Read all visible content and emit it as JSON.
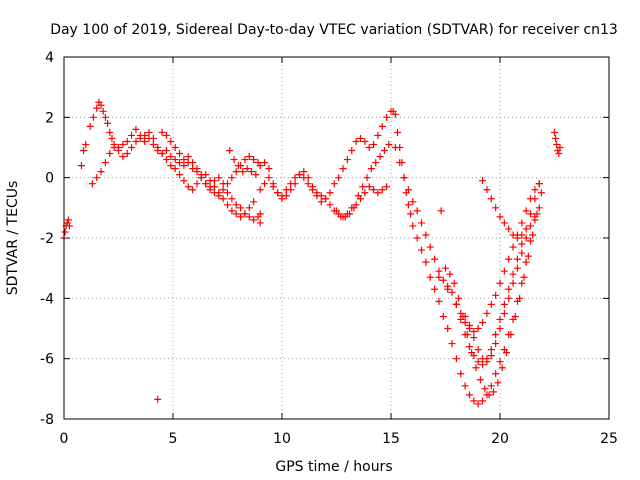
{
  "chart_data": {
    "type": "scatter",
    "title": "Day 100 of 2019, Sidereal Day-to-day VTEC variation (SDTVAR) for receiver cn13",
    "xlabel": "GPS time / hours",
    "ylabel": "SDTVAR / TECUs",
    "xlim": [
      0,
      25
    ],
    "ylim": [
      -8,
      4
    ],
    "xticks": [
      0,
      5,
      10,
      15,
      20,
      25
    ],
    "yticks": [
      -8,
      -6,
      -4,
      -2,
      0,
      2,
      4
    ],
    "grid": true,
    "marker": "+",
    "color": "#ff0000",
    "series": [
      {
        "x": [
          0.0,
          0.05,
          0.1,
          0.15,
          0.2,
          0.25,
          0.8,
          0.9,
          1.0,
          1.2,
          1.35,
          1.5,
          1.6,
          1.7,
          1.8,
          1.9,
          2.0,
          2.1,
          2.2,
          2.3,
          2.5,
          2.7,
          2.9,
          3.1,
          3.3,
          3.5,
          3.7,
          3.9,
          4.1,
          4.3,
          4.5,
          4.7,
          4.9,
          5.1,
          5.3,
          5.5,
          5.7,
          5.9,
          6.1,
          6.3,
          6.5,
          6.7,
          6.9,
          7.1,
          7.3,
          7.5,
          7.7,
          7.9,
          8.1,
          8.3,
          8.5,
          8.7,
          8.9,
          9.0,
          1.3,
          1.5,
          1.7,
          1.9,
          2.1,
          2.3,
          2.5,
          2.7,
          2.9,
          3.1,
          3.3,
          3.5,
          3.7,
          3.9,
          4.1,
          4.3,
          4.5,
          4.7,
          4.9,
          5.1,
          5.3,
          5.5,
          5.7,
          5.9,
          6.1,
          6.3,
          6.5,
          6.7,
          6.9,
          7.1,
          7.3,
          7.5,
          7.7,
          7.9,
          8.1,
          8.3,
          8.5,
          8.7,
          4.5,
          4.7,
          4.9,
          5.1,
          5.3,
          5.5,
          5.7,
          5.9,
          6.1,
          6.3,
          6.5,
          6.7,
          6.9,
          7.1,
          7.3,
          7.5,
          7.7,
          7.9,
          8.1,
          8.3,
          8.5,
          8.7,
          8.9,
          7.6,
          7.8,
          8.0,
          8.2,
          8.4,
          8.6,
          8.8,
          9.0,
          9.2,
          9.4,
          9.6,
          9.8,
          10.0,
          10.2,
          10.4,
          10.6,
          10.8,
          11.0,
          11.2,
          11.4,
          11.6,
          11.8,
          12.0,
          12.2,
          12.4,
          12.6,
          12.8,
          13.0,
          13.2,
          13.4,
          13.6,
          13.8,
          14.0,
          14.2,
          14.4,
          14.6,
          14.8,
          9.0,
          9.2,
          9.4,
          9.6,
          9.8,
          10.0,
          10.2,
          10.4,
          10.6,
          10.8,
          11.0,
          11.2,
          11.4,
          11.6,
          11.8,
          12.0,
          12.2,
          12.4,
          12.6,
          12.8,
          13.0,
          13.2,
          13.4,
          13.6,
          13.8,
          14.0,
          14.2,
          14.4,
          14.6,
          14.8,
          12.5,
          12.7,
          12.9,
          13.1,
          13.3,
          13.5,
          13.7,
          13.9,
          14.1,
          14.3,
          14.5,
          14.7,
          14.9,
          4.3,
          9.0,
          15.0,
          15.1,
          15.2,
          15.3,
          15.4,
          15.5,
          15.6,
          15.7,
          15.8,
          15.9,
          16.0,
          16.2,
          16.4,
          16.6,
          16.8,
          17.0,
          17.2,
          17.4,
          17.6,
          17.8,
          18.0,
          18.2,
          18.4,
          18.6,
          18.8,
          19.0,
          19.2,
          19.4,
          19.6,
          19.8,
          20.0,
          20.2,
          20.4,
          20.6,
          20.8,
          21.0,
          21.2,
          21.4,
          21.6,
          15.2,
          15.4,
          15.6,
          15.8,
          16.0,
          16.2,
          16.4,
          16.6,
          16.8,
          17.0,
          17.2,
          17.4,
          17.6,
          17.8,
          18.0,
          18.2,
          18.4,
          18.6,
          18.8,
          19.0,
          19.2,
          19.4,
          19.6,
          19.8,
          20.0,
          20.2,
          20.4,
          20.6,
          20.8,
          21.0,
          21.2,
          21.4,
          21.6,
          21.8,
          17.5,
          17.7,
          17.9,
          18.1,
          18.3,
          18.5,
          18.7,
          18.9,
          19.1,
          19.3,
          19.5,
          19.7,
          19.9,
          20.1,
          20.3,
          20.5,
          20.7,
          20.9,
          21.1,
          21.3,
          21.5,
          21.7,
          21.9,
          17.2,
          17.6,
          18.0,
          18.4,
          18.6,
          18.8,
          19.0,
          19.2,
          19.4,
          19.6,
          19.8,
          20.0,
          20.2,
          20.4,
          20.6,
          20.8,
          21.0,
          21.2,
          21.4,
          21.6,
          21.8,
          18.0,
          18.2,
          18.4,
          18.6,
          18.8,
          19.0,
          19.2,
          19.4,
          19.6,
          19.8,
          20.0,
          20.2,
          20.4,
          20.6,
          20.8,
          21.0,
          21.2,
          21.4,
          21.6,
          21.8,
          19.2,
          19.4,
          19.6,
          19.8,
          20.0,
          20.2,
          20.4,
          20.6,
          20.8,
          21.0,
          17.3,
          22.5,
          22.55,
          22.6,
          22.65,
          22.7,
          22.75
        ],
        "y": [
          -2.0,
          -1.8,
          -1.6,
          -1.5,
          -1.4,
          -1.6,
          0.4,
          0.9,
          1.1,
          1.7,
          2.0,
          2.3,
          2.5,
          2.4,
          2.2,
          2.0,
          1.8,
          1.5,
          1.3,
          1.1,
          1.0,
          1.1,
          1.2,
          1.4,
          1.6,
          1.4,
          1.2,
          1.3,
          1.1,
          0.9,
          0.8,
          0.9,
          0.7,
          0.6,
          0.5,
          0.4,
          0.5,
          0.3,
          0.2,
          0.0,
          -0.2,
          -0.3,
          -0.1,
          0.0,
          -0.2,
          -0.5,
          -0.7,
          -0.9,
          -1.0,
          -1.2,
          -1.3,
          -1.4,
          -1.3,
          -1.2,
          -0.2,
          0.0,
          0.2,
          0.5,
          0.8,
          1.0,
          0.9,
          0.7,
          0.8,
          1.0,
          1.2,
          1.3,
          1.4,
          1.5,
          1.3,
          1.0,
          0.8,
          0.6,
          0.4,
          0.3,
          0.1,
          -0.1,
          -0.3,
          -0.4,
          -0.2,
          0.0,
          0.1,
          -0.1,
          -0.3,
          -0.5,
          -0.7,
          -0.9,
          -1.1,
          -1.2,
          -1.3,
          -1.2,
          -1.0,
          -0.8,
          1.5,
          1.4,
          1.2,
          1.0,
          0.8,
          0.6,
          0.7,
          0.5,
          0.3,
          0.1,
          -0.2,
          -0.4,
          -0.5,
          -0.6,
          -0.4,
          -0.2,
          0.0,
          0.2,
          0.4,
          0.6,
          0.7,
          0.6,
          0.5,
          0.9,
          0.6,
          0.4,
          0.2,
          0.3,
          0.2,
          0.1,
          0.4,
          0.5,
          0.3,
          -0.2,
          -0.5,
          -0.7,
          -0.6,
          -0.4,
          -0.2,
          0.1,
          0.2,
          0.0,
          -0.3,
          -0.6,
          -0.8,
          -0.7,
          -0.5,
          -0.2,
          0.0,
          0.3,
          0.6,
          0.9,
          1.2,
          1.3,
          1.2,
          1.0,
          1.1,
          1.4,
          1.7,
          2.0,
          -0.4,
          -0.2,
          0.0,
          -0.3,
          -0.5,
          -0.6,
          -0.4,
          -0.2,
          0.0,
          0.1,
          0.0,
          -0.2,
          -0.4,
          -0.5,
          -0.6,
          -0.7,
          -0.9,
          -1.1,
          -1.2,
          -1.3,
          -1.2,
          -1.0,
          -0.9,
          -0.7,
          -0.5,
          -0.3,
          -0.4,
          -0.5,
          -0.4,
          -0.3,
          -1.1,
          -1.3,
          -1.3,
          -1.2,
          -1.0,
          -0.6,
          -0.3,
          0.0,
          0.3,
          0.5,
          0.7,
          0.9,
          1.1,
          -7.35,
          -1.5,
          2.2,
          2.2,
          2.1,
          1.5,
          1.0,
          0.5,
          0.0,
          -0.5,
          -0.9,
          -1.2,
          -1.6,
          -2.0,
          -2.4,
          -2.8,
          -3.3,
          -3.7,
          -4.1,
          -4.6,
          -5.0,
          -5.5,
          -6.0,
          -6.5,
          -6.9,
          -7.2,
          -7.4,
          -7.5,
          -7.4,
          -7.2,
          -6.9,
          -6.5,
          -6.1,
          -5.7,
          -5.2,
          -4.7,
          -4.1,
          -3.5,
          -2.8,
          -2.1,
          -1.4,
          1.0,
          0.5,
          0.0,
          -0.4,
          -0.8,
          -1.1,
          -1.5,
          -1.9,
          -2.3,
          -2.7,
          -3.1,
          -3.4,
          -3.6,
          -3.8,
          -4.2,
          -4.7,
          -5.2,
          -5.6,
          -5.9,
          -6.1,
          -6.2,
          -6.0,
          -5.7,
          -5.2,
          -4.7,
          -4.2,
          -3.7,
          -3.2,
          -2.7,
          -2.2,
          -1.7,
          -1.2,
          -0.7,
          -0.2,
          -3.0,
          -3.2,
          -3.5,
          -4.0,
          -4.6,
          -5.2,
          -5.8,
          -6.3,
          -6.7,
          -7.0,
          -7.2,
          -7.1,
          -6.8,
          -6.3,
          -5.8,
          -5.2,
          -4.6,
          -4.0,
          -3.3,
          -2.6,
          -1.9,
          -1.2,
          -0.5,
          -3.3,
          -3.7,
          -4.2,
          -4.6,
          -4.9,
          -5.3,
          -5.7,
          -6.0,
          -6.1,
          -5.9,
          -5.5,
          -5.0,
          -4.5,
          -4.0,
          -3.5,
          -3.0,
          -2.5,
          -2.0,
          -1.6,
          -1.3,
          -1.0,
          -4.2,
          -4.5,
          -4.8,
          -5.0,
          -5.1,
          -5.0,
          -4.8,
          -4.5,
          -4.2,
          -3.9,
          -3.5,
          -3.1,
          -2.7,
          -2.3,
          -1.9,
          -1.5,
          -1.1,
          -0.7,
          -0.4,
          -0.2,
          -0.1,
          -0.4,
          -0.7,
          -1.0,
          -1.3,
          -1.5,
          -1.7,
          -1.9,
          -2.0,
          -1.9,
          -1.1,
          1.5,
          1.3,
          1.1,
          0.9,
          0.8,
          1.0
        ]
      }
    ]
  }
}
